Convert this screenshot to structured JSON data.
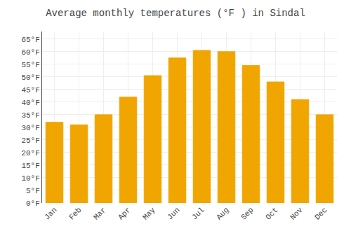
{
  "chart_data": {
    "type": "bar",
    "title": "Average monthly temperatures (°F ) in Sindal",
    "categories": [
      "Jan",
      "Feb",
      "Mar",
      "Apr",
      "May",
      "Jun",
      "Jul",
      "Aug",
      "Sep",
      "Oct",
      "Nov",
      "Dec"
    ],
    "values": [
      32,
      31,
      35,
      42,
      50.5,
      57.5,
      60.5,
      60,
      54.5,
      48,
      41,
      35
    ],
    "color": "#F0A500",
    "ylim": [
      0,
      68
    ],
    "yticks": [
      {
        "value": 0,
        "label": "0°F"
      },
      {
        "value": 5,
        "label": "5°F"
      },
      {
        "value": 10,
        "label": "10°F"
      },
      {
        "value": 15,
        "label": "15°F"
      },
      {
        "value": 20,
        "label": "20°F"
      },
      {
        "value": 25,
        "label": "25°F"
      },
      {
        "value": 30,
        "label": "30°F"
      },
      {
        "value": 35,
        "label": "35°F"
      },
      {
        "value": 40,
        "label": "40°F"
      },
      {
        "value": 45,
        "label": "45°F"
      },
      {
        "value": 50,
        "label": "50°F"
      },
      {
        "value": 55,
        "label": "55°F"
      },
      {
        "value": 60,
        "label": "60°F"
      },
      {
        "value": 65,
        "label": "65°F"
      }
    ],
    "grid": true
  }
}
